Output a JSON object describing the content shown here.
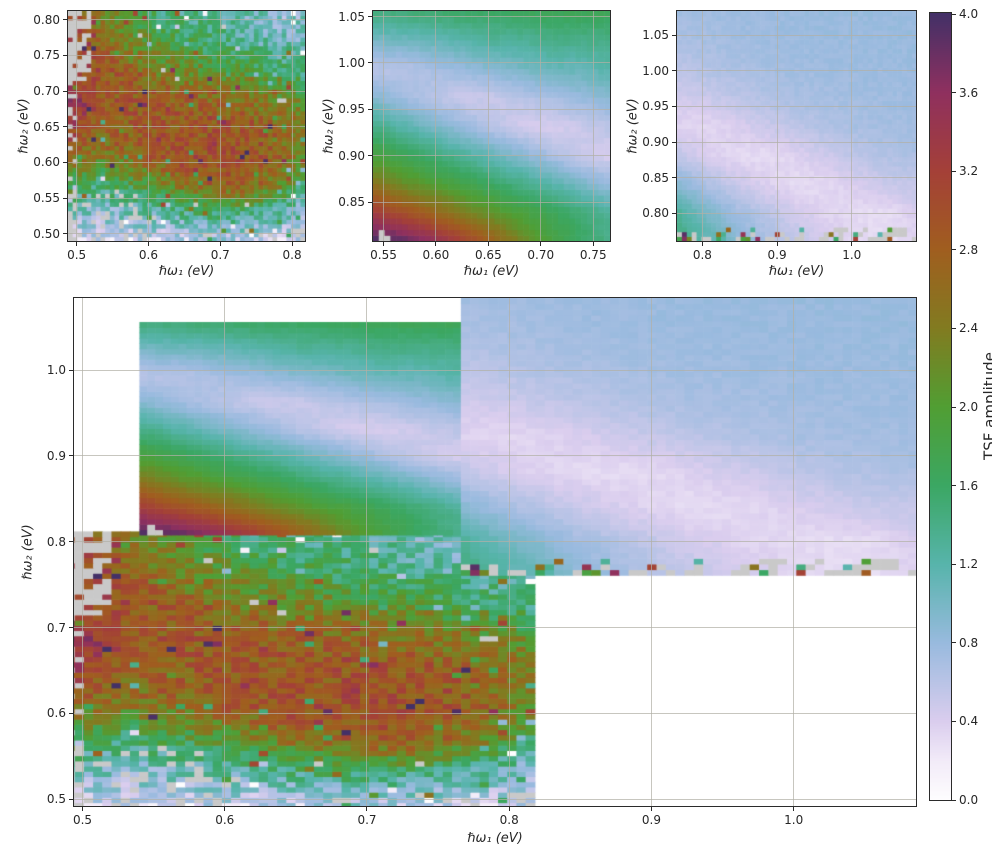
{
  "figure": {
    "background": "#ffffff",
    "frame_color": "#2b2b2b",
    "grid_color": "rgba(178,176,166,0.72)",
    "text_color": "#262626"
  },
  "colorbar": {
    "label": "TSF amplitude",
    "vmin": 0.0,
    "vmax": 4.0,
    "tick_values": [
      0.0,
      0.4,
      0.8,
      1.2,
      1.6,
      2.0,
      2.4,
      2.8,
      3.2,
      3.6,
      4.0
    ],
    "tick_labels": [
      "0.0",
      "0.4",
      "0.8",
      "1.2",
      "1.6",
      "2.0",
      "2.4",
      "2.8",
      "3.2",
      "3.6",
      "4.0"
    ]
  },
  "colormap": {
    "bad_color": "#c9c9c9",
    "stops": [
      [
        0.0,
        "#fefdfe"
      ],
      [
        0.05,
        "#f2ebf8"
      ],
      [
        0.1,
        "#dacdee"
      ],
      [
        0.2,
        "#98bade"
      ],
      [
        0.3,
        "#57b4ab"
      ],
      [
        0.4,
        "#3ba763"
      ],
      [
        0.5,
        "#519e33"
      ],
      [
        0.6,
        "#827b20"
      ],
      [
        0.7,
        "#a05e1f"
      ],
      [
        0.8,
        "#a44038"
      ],
      [
        0.9,
        "#8f305f"
      ],
      [
        1.0,
        "#433067"
      ]
    ]
  },
  "chart_data": {
    "type": "heatmap",
    "title": "",
    "value_label": "TSF amplitude",
    "vmin": 0.0,
    "vmax": 4.0,
    "grid": true,
    "panels": [
      {
        "id": "top-left",
        "xlabel": "ℏω₁ (eV)",
        "ylabel": "ℏω₂ (eV)",
        "xlim": [
          0.488,
          0.818
        ],
        "ylim": [
          0.49,
          0.812
        ],
        "xtick_values": [
          0.5,
          0.6,
          0.7,
          0.8
        ],
        "xtick_labels": [
          "0.5",
          "0.6",
          "0.7",
          "0.8"
        ],
        "ytick_values": [
          0.5,
          0.55,
          0.6,
          0.65,
          0.7,
          0.75,
          0.8
        ],
        "ytick_labels": [
          "0.50",
          "0.55",
          "0.60",
          "0.65",
          "0.70",
          "0.75",
          "0.80"
        ],
        "datasets": [
          "A"
        ]
      },
      {
        "id": "top-middle",
        "xlabel": "ℏω₁ (eV)",
        "ylabel": "ℏω₂ (eV)",
        "xlim": [
          0.54,
          0.766
        ],
        "ylim": [
          0.808,
          1.056
        ],
        "xtick_values": [
          0.55,
          0.6,
          0.65,
          0.7,
          0.75
        ],
        "xtick_labels": [
          "0.55",
          "0.60",
          "0.65",
          "0.70",
          "0.75"
        ],
        "ytick_values": [
          0.85,
          0.9,
          0.95,
          1.0,
          1.05
        ],
        "ytick_labels": [
          "0.85",
          "0.90",
          "0.95",
          "1.00",
          "1.05"
        ],
        "datasets": [
          "B"
        ]
      },
      {
        "id": "top-right",
        "xlabel": "ℏω₁ (eV)",
        "ylabel": "ℏω₂ (eV)",
        "xlim": [
          0.766,
          1.086
        ],
        "ylim": [
          0.761,
          1.084
        ],
        "xtick_values": [
          0.8,
          0.9,
          1.0
        ],
        "xtick_labels": [
          "0.8",
          "0.9",
          "1.0"
        ],
        "ytick_values": [
          0.8,
          0.85,
          0.9,
          0.95,
          1.0,
          1.05
        ],
        "ytick_labels": [
          "0.80",
          "0.85",
          "0.90",
          "0.95",
          "1.00",
          "1.05"
        ],
        "datasets": [
          "C"
        ]
      },
      {
        "id": "composite",
        "xlabel": "ℏω₁ (eV)",
        "ylabel": "ℏω₂ (eV)",
        "xlim": [
          0.494,
          1.086
        ],
        "ylim": [
          0.492,
          1.084
        ],
        "xtick_values": [
          0.5,
          0.6,
          0.7,
          0.8,
          0.9,
          1.0
        ],
        "xtick_labels": [
          "0.5",
          "0.6",
          "0.7",
          "0.8",
          "0.9",
          "1.0"
        ],
        "ytick_values": [
          0.5,
          0.6,
          0.7,
          0.8,
          0.9,
          1.0
        ],
        "ytick_labels": [
          "0.5",
          "0.6",
          "0.7",
          "0.8",
          "0.9",
          "1.0"
        ],
        "datasets": [
          "A",
          "B",
          "C"
        ]
      }
    ],
    "datasets": {
      "A": {
        "id": "A",
        "style": "noisy",
        "x_range": [
          0.488,
          0.818
        ],
        "y_range": [
          0.49,
          0.812
        ],
        "nx": 51,
        "ny": 53,
        "seed": 7,
        "noise": 0.4,
        "salt": {
          "prob": 0.07,
          "amp": 1.6
        },
        "missing": {
          "left_col": 0.38,
          "left_top_blob": 0.55,
          "bottom_left": 0.13,
          "bottom_row": 0.12,
          "corner_br": 0.22,
          "scatter": 0.003
        },
        "coarse_values": [
          [
            0.4,
            0.3,
            0.5,
            0.4,
            0.5,
            0.6,
            0.5,
            0.4,
            0.6
          ],
          [
            1.1,
            0.9,
            1.0,
            1.2,
            1.4,
            1.6,
            1.5,
            1.2,
            0.8
          ],
          [
            1.8,
            1.5,
            1.8,
            2.2,
            2.6,
            2.8,
            2.8,
            2.4,
            1.6
          ],
          [
            2.8,
            2.4,
            2.6,
            2.9,
            3.0,
            3.0,
            2.9,
            2.8,
            2.2
          ],
          [
            3.4,
            2.8,
            2.8,
            2.9,
            2.9,
            2.9,
            2.9,
            2.7,
            2.4
          ],
          [
            3.6,
            3.0,
            2.9,
            2.8,
            2.7,
            2.6,
            2.5,
            2.3,
            2.0
          ],
          [
            3.4,
            2.9,
            2.7,
            2.4,
            2.2,
            2.0,
            1.9,
            1.6,
            1.4
          ],
          [
            3.2,
            2.7,
            2.2,
            1.9,
            1.7,
            1.5,
            1.3,
            1.1,
            1.0
          ],
          [
            2.8,
            2.5,
            2.0,
            1.6,
            1.4,
            1.2,
            1.1,
            1.0,
            0.9
          ]
        ]
      },
      "B": {
        "id": "B",
        "style": "smooth",
        "x_range": [
          0.54,
          0.766
        ],
        "y_range": [
          0.808,
          1.056
        ],
        "nx": 41,
        "ny": 40,
        "seed": 13,
        "noise": 0.035,
        "missing": {
          "bottom_left_speck": 0.15
        },
        "coarse_values": [
          [
            4.0,
            3.9,
            3.6,
            3.2,
            2.8,
            2.3,
            1.9,
            1.6,
            1.4
          ],
          [
            3.3,
            3.0,
            2.7,
            2.4,
            2.1,
            1.9,
            1.7,
            1.5,
            1.3
          ],
          [
            2.5,
            2.2,
            2.0,
            1.8,
            1.6,
            1.4,
            1.2,
            1.0,
            0.8
          ],
          [
            1.9,
            1.7,
            1.5,
            1.3,
            1.1,
            0.9,
            0.7,
            0.5,
            0.4
          ],
          [
            1.4,
            1.2,
            1.0,
            0.8,
            0.6,
            0.45,
            0.4,
            0.5,
            0.6
          ],
          [
            0.9,
            0.75,
            0.6,
            0.5,
            0.5,
            0.6,
            0.7,
            0.8,
            0.9
          ],
          [
            0.6,
            0.6,
            0.7,
            0.8,
            0.9,
            1.0,
            1.1,
            1.1,
            1.2
          ],
          [
            1.0,
            1.05,
            1.1,
            1.2,
            1.3,
            1.3,
            1.4,
            1.4,
            1.4
          ],
          [
            1.5,
            1.5,
            1.55,
            1.6,
            1.6,
            1.65,
            1.7,
            1.7,
            1.7
          ]
        ]
      },
      "C": {
        "id": "C",
        "style": "smooth",
        "x_range": [
          0.766,
          1.087
        ],
        "y_range": [
          0.761,
          1.084
        ],
        "nx": 49,
        "ny": 49,
        "seed": 21,
        "noise": 0.04,
        "noisy_bottom": {
          "bad": 0.28,
          "hot": 0.25,
          "second_row": 0.05,
          "right_corner": 0.3
        },
        "coarse_values": [
          [
            1.5,
            1.2,
            0.9,
            0.7,
            0.55,
            0.45,
            0.35,
            0.3,
            0.35
          ],
          [
            1.3,
            1.0,
            0.75,
            0.6,
            0.45,
            0.35,
            0.3,
            0.3,
            0.4
          ],
          [
            0.9,
            0.65,
            0.5,
            0.38,
            0.3,
            0.32,
            0.42,
            0.5,
            0.55
          ],
          [
            0.55,
            0.4,
            0.32,
            0.3,
            0.38,
            0.48,
            0.58,
            0.65,
            0.68
          ],
          [
            0.35,
            0.33,
            0.4,
            0.5,
            0.58,
            0.65,
            0.7,
            0.72,
            0.74
          ],
          [
            0.45,
            0.5,
            0.58,
            0.65,
            0.7,
            0.72,
            0.74,
            0.75,
            0.76
          ],
          [
            0.58,
            0.64,
            0.68,
            0.72,
            0.74,
            0.76,
            0.77,
            0.77,
            0.78
          ],
          [
            0.68,
            0.71,
            0.74,
            0.76,
            0.77,
            0.78,
            0.78,
            0.79,
            0.79
          ],
          [
            0.73,
            0.75,
            0.76,
            0.78,
            0.78,
            0.79,
            0.79,
            0.8,
            0.8
          ]
        ]
      }
    }
  }
}
